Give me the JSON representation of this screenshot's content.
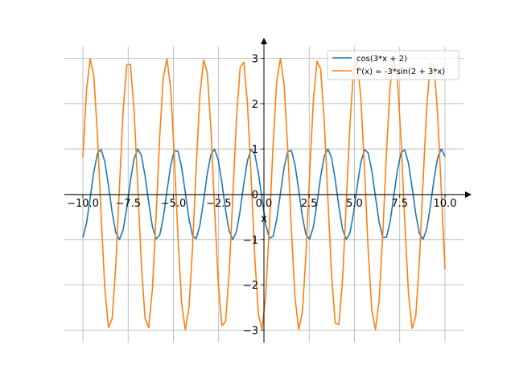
{
  "chart_data": {
    "type": "line",
    "xlabel": "x",
    "ylabel": "",
    "xlim": [
      -10,
      10
    ],
    "ylim": [
      -3,
      3
    ],
    "grid": true,
    "legend_position": "top-right",
    "x_ticks": [
      {
        "value": -10,
        "label": "−10.0"
      },
      {
        "value": -7.5,
        "label": "−7.5"
      },
      {
        "value": -5,
        "label": "−5.0"
      },
      {
        "value": -2.5,
        "label": "−2.5"
      },
      {
        "value": 0,
        "label": "0.0"
      },
      {
        "value": 2.5,
        "label": "2.5"
      },
      {
        "value": 5,
        "label": "5.0"
      },
      {
        "value": 7.5,
        "label": "7.5"
      },
      {
        "value": 10,
        "label": "10.0"
      }
    ],
    "y_ticks": [
      {
        "value": -3,
        "label": "−3"
      },
      {
        "value": -2,
        "label": "−2"
      },
      {
        "value": -1,
        "label": "−1"
      },
      {
        "value": 0,
        "label": "0"
      },
      {
        "value": 1,
        "label": "1"
      },
      {
        "value": 2,
        "label": "2"
      },
      {
        "value": 3,
        "label": "3"
      }
    ],
    "series": [
      {
        "name": "cos(3*x + 2)",
        "color": "#1f77b4",
        "function": "cos(3*x + 2)",
        "x_range": [
          -10,
          10
        ],
        "samples": 100
      },
      {
        "name": "f'(x) = -3*sin(2 + 3*x)",
        "color": "#ff7f0e",
        "function": "-3*sin(2 + 3*x)",
        "x_range": [
          -10,
          10
        ],
        "samples": 100
      }
    ]
  }
}
